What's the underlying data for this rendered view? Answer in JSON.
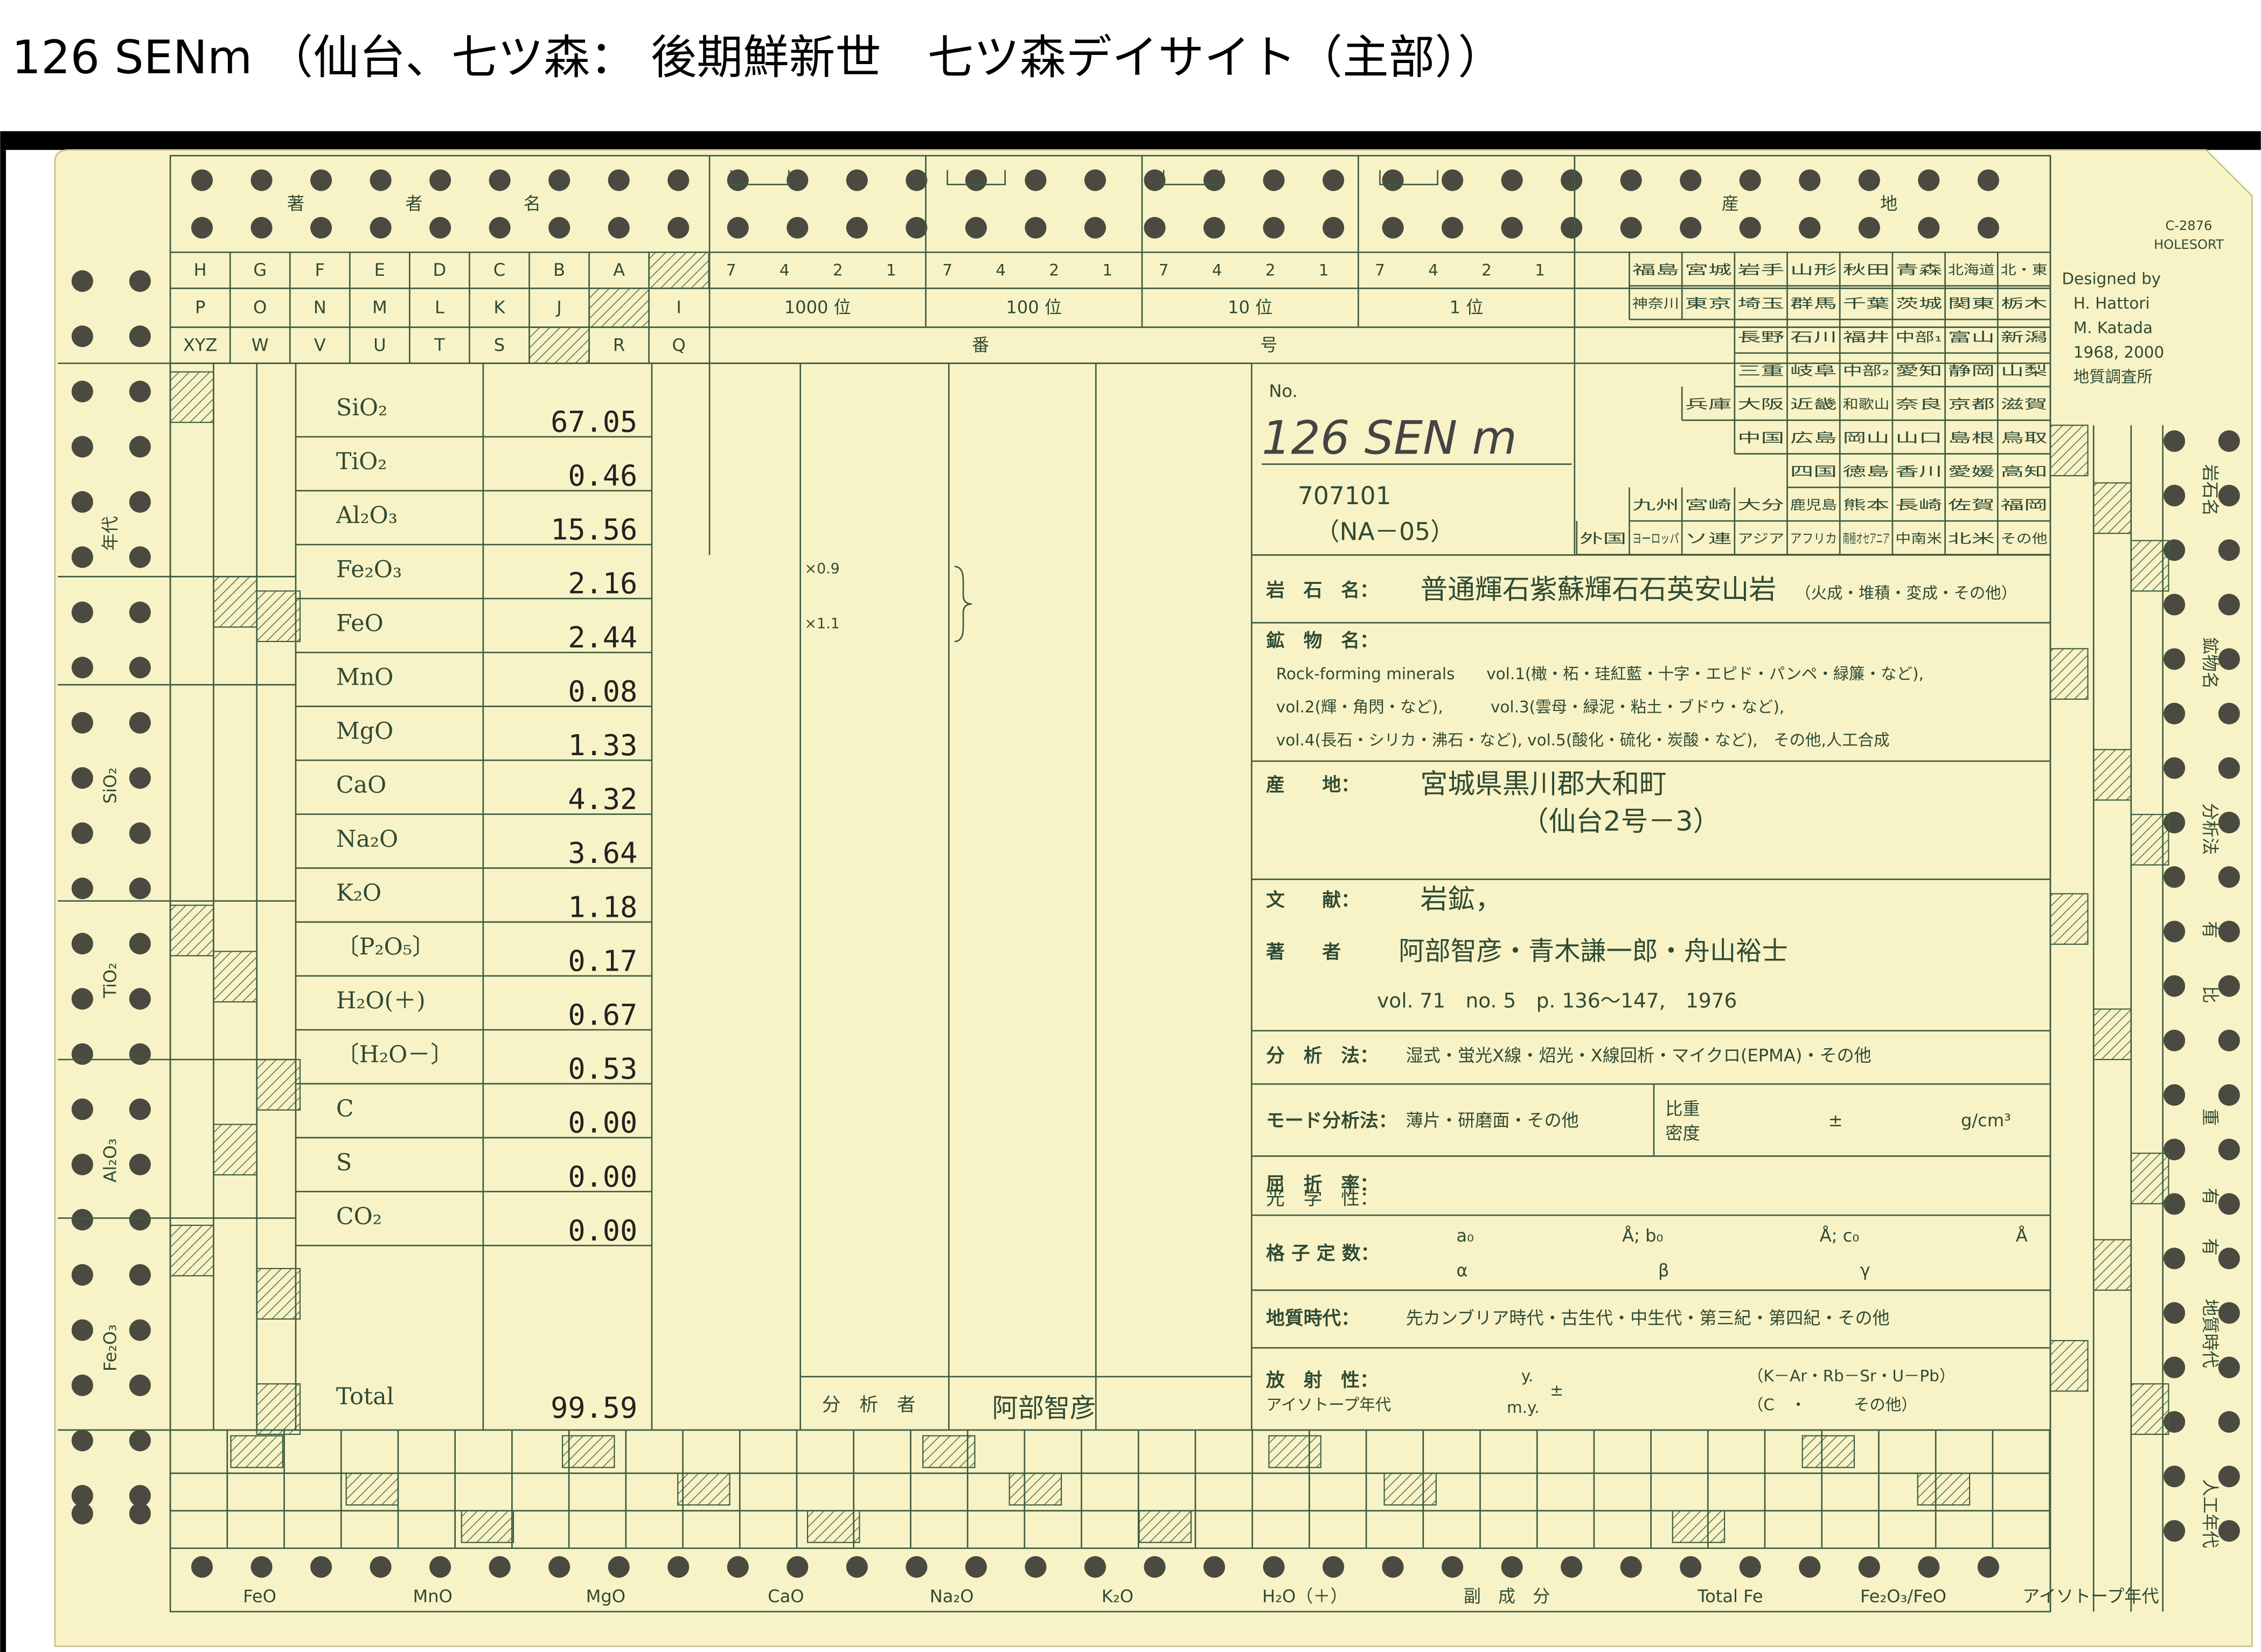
{
  "header": {
    "title": "126 SENm （仙台、七ツ森： 後期鮮新世　七ツ森デイサイト（主部））"
  },
  "card": {
    "code": "C-2876",
    "brand": "HOLESORT",
    "designed": [
      "Designed by",
      "H. Hattori",
      "M. Katada",
      "1968, 2000",
      "地質調査所"
    ],
    "author_header": [
      "著",
      "者",
      "名"
    ],
    "letters": [
      [
        "H",
        "G",
        "F",
        "E",
        "D",
        "C",
        "B",
        "A"
      ],
      [
        "P",
        "O",
        "N",
        "M",
        "L",
        "K",
        "J",
        "I"
      ],
      [
        "XYZ",
        "W",
        "V",
        "U",
        "T",
        "S",
        "R",
        "Q"
      ]
    ],
    "digits": [
      "7",
      "4",
      "2",
      "1"
    ],
    "places": [
      "1000 位",
      "100 位",
      "10 位",
      "1 位"
    ],
    "number_header": [
      "番",
      "号"
    ],
    "locality_header": [
      "産",
      "地"
    ],
    "localities": [
      [
        "福島",
        "宮城",
        "岩手",
        "山形",
        "秋田",
        "青森",
        "北海道",
        "北・東"
      ],
      [
        "神奈川",
        "東京",
        "埼玉",
        "群馬",
        "千葉",
        "茨城",
        "関東",
        "栃木"
      ],
      [
        "長野",
        "石川",
        "福井",
        "中部₁",
        "富山",
        "新潟"
      ],
      [
        "三重",
        "岐阜",
        "中部₂",
        "愛知",
        "静岡",
        "山梨"
      ],
      [
        "兵庫",
        "大阪",
        "近畿",
        "和歌山",
        "奈良",
        "京都",
        "滋賀"
      ],
      [
        "中国",
        "広島",
        "岡山",
        "山口",
        "島根",
        "鳥取"
      ],
      [
        "四国",
        "徳島",
        "香川",
        "愛媛",
        "高知"
      ],
      [
        "九州",
        "宮崎",
        "大分",
        "鹿児島",
        "熊本",
        "長崎",
        "佐賀",
        "福岡"
      ],
      [
        "外国",
        "ヨーロッパ",
        "ソ連",
        "アジア",
        "アフリカ",
        "南極オセアニア",
        "中南米",
        "北米",
        "その他"
      ]
    ],
    "analysis": [
      {
        "oxide": "SiO₂",
        "value": "67.05"
      },
      {
        "oxide": "TiO₂",
        "value": "0.46"
      },
      {
        "oxide": "Al₂O₃",
        "value": "15.56"
      },
      {
        "oxide": "Fe₂O₃",
        "value": "2.16"
      },
      {
        "oxide": "FeO",
        "value": "2.44"
      },
      {
        "oxide": "MnO",
        "value": "0.08"
      },
      {
        "oxide": "MgO",
        "value": "1.33"
      },
      {
        "oxide": "CaO",
        "value": "4.32"
      },
      {
        "oxide": "Na₂O",
        "value": "3.64"
      },
      {
        "oxide": "K₂O",
        "value": "1.18"
      },
      {
        "oxide": "〔P₂O₅〕",
        "value": "0.17"
      },
      {
        "oxide": "H₂O(＋)",
        "value": "0.67"
      },
      {
        "oxide": "〔H₂O－〕",
        "value": "0.53"
      },
      {
        "oxide": "C",
        "value": "0.00"
      },
      {
        "oxide": "S",
        "value": "0.00"
      },
      {
        "oxide": "CO₂",
        "value": "0.00"
      }
    ],
    "total_label": "Total",
    "total": "99.59",
    "factors": [
      "×0.9",
      "×1.1"
    ],
    "analyst_label": "分　析　者",
    "analyst": "阿部智彦",
    "no_label": "No.",
    "no_value": "126 SEN m",
    "code_number": "707101",
    "code_sub": "（NA－05）",
    "fields": [
      {
        "label": "岩　石　名：",
        "lines": [
          "普通輝石紫蘇輝石石英安山岩",
          "（火成・堆積・変成・その他）"
        ]
      },
      {
        "label": "鉱　物　名：",
        "lines": [
          "Rock-forming minerals　　vol.1(橄・柘・珪紅藍・十字・エピド・パンペ・緑簾・など),",
          "vol.2(輝・角閃・など),　　　vol.3(雲母・緑泥・粘土・ブドウ・など),",
          "vol.4(長石・シリカ・沸石・など), vol.5(酸化・硫化・炭酸・など),　その他,人工合成"
        ]
      },
      {
        "label": "産　　地：",
        "lines": [
          "宮城県黒川郡大和町",
          "（仙台2号－3）"
        ]
      },
      {
        "label": "文　　献：",
        "lines": [
          "岩鉱，"
        ]
      },
      {
        "label": "著　　者",
        "lines": [
          "阿部智彦・青木謙一郎・舟山裕士",
          "vol. 71　no. 5　p. 136～147,　1976"
        ]
      },
      {
        "label": "分　析　法：",
        "lines": [
          "湿式・蛍光X線・炤光・X線回析・マイクロ(EPMA)・その他"
        ]
      },
      {
        "label": "モード分析法：",
        "lines": [
          "薄片・研磨面・その他",
          "比重",
          "密度",
          "±",
          "g/cm³"
        ]
      },
      {
        "label": "屈　折　率：",
        "lines": [
          "光　学　性："
        ]
      },
      {
        "label": "格 子 定 数：",
        "lines": [
          "a₀",
          "Å; b₀",
          "Å; c₀",
          "Å",
          "α",
          "β",
          "γ"
        ]
      },
      {
        "label": "地質時代：",
        "lines": [
          "先カンブリア時代・古生代・中生代・第三紀・第四紀・その他"
        ]
      },
      {
        "label": "放　射　性：",
        "lines": [
          "アイソトープ年代",
          "y.",
          "m.y.",
          "±",
          "（K－Ar・Rb－Sr・U－Pb）",
          "（C　・　　　その他）"
        ]
      }
    ],
    "left_labels": [
      "年代",
      "SiO₂",
      "TiO₂",
      "Al₂O₃",
      "Fe₂O₃"
    ],
    "right_labels": [
      "岩石名",
      "鉱物名",
      "分析法",
      "有",
      "比",
      "重",
      "有",
      "有",
      "地質時代",
      "人工年代"
    ],
    "bottom_labels": [
      "FeO",
      "MnO",
      "MgO",
      "CaO",
      "Na₂O",
      "K₂O",
      "H₂O（＋）",
      "副　成　分",
      "Total Fe",
      "Fe₂O₃/FeO",
      "アイソトープ年代"
    ]
  }
}
